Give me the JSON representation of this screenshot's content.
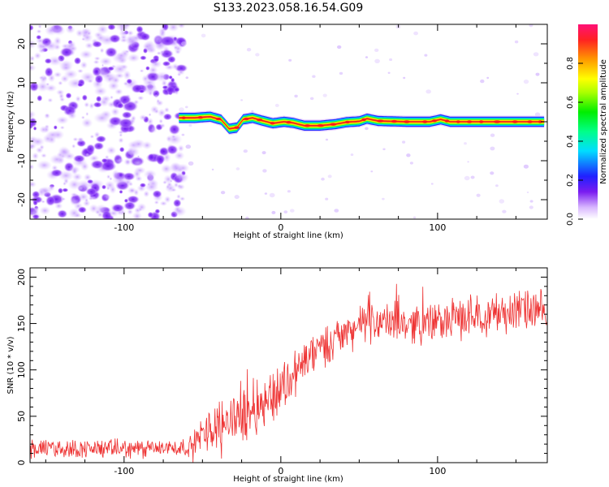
{
  "title": "S133.2023.058.16.54.G09",
  "chart_data": [
    {
      "type": "heatmap",
      "xlabel": "Height of straight line (km)",
      "ylabel": "Frequency (Hz)",
      "xlim": [
        -160,
        170
      ],
      "ylim": [
        -25,
        25
      ],
      "x_ticks": [
        "-100",
        "0",
        "100"
      ],
      "y_ticks": [
        "-20",
        "-10",
        "0",
        "10",
        "20"
      ],
      "colorbar": {
        "label": "Normalized spectral amplitude",
        "range": [
          0.0,
          1.0
        ],
        "ticks": [
          "0.0",
          "0.2",
          "0.4",
          "0.6",
          "0.8"
        ]
      },
      "noise_region_x": [
        -160,
        -65
      ],
      "ridge": {
        "x_range": [
          -65,
          168
        ],
        "frequency_trace": [
          {
            "x": -65,
            "f": 1.0
          },
          {
            "x": -55,
            "f": 1.0
          },
          {
            "x": -45,
            "f": 1.3
          },
          {
            "x": -38,
            "f": 0.5
          },
          {
            "x": -33,
            "f": -1.8
          },
          {
            "x": -28,
            "f": -1.5
          },
          {
            "x": -24,
            "f": 0.6
          },
          {
            "x": -18,
            "f": 1.0
          },
          {
            "x": -12,
            "f": 0.3
          },
          {
            "x": -5,
            "f": -0.4
          },
          {
            "x": 2,
            "f": 0.0
          },
          {
            "x": 8,
            "f": -0.3
          },
          {
            "x": 15,
            "f": -1.0
          },
          {
            "x": 25,
            "f": -1.0
          },
          {
            "x": 35,
            "f": -0.6
          },
          {
            "x": 42,
            "f": -0.1
          },
          {
            "x": 50,
            "f": 0.1
          },
          {
            "x": 55,
            "f": 0.8
          },
          {
            "x": 62,
            "f": 0.2
          },
          {
            "x": 80,
            "f": 0.0
          },
          {
            "x": 95,
            "f": 0.0
          },
          {
            "x": 102,
            "f": 0.6
          },
          {
            "x": 108,
            "f": 0.0
          },
          {
            "x": 168,
            "f": 0.0
          }
        ]
      }
    },
    {
      "type": "line",
      "xlabel": "Height of straight line (km)",
      "ylabel": "SNR (10 * v/v)",
      "xlim": [
        -160,
        170
      ],
      "ylim": [
        0,
        210
      ],
      "x_ticks": [
        "-100",
        "0",
        "100"
      ],
      "y_ticks": [
        "0",
        "50",
        "100",
        "150",
        "200"
      ],
      "series_color": "#ee3333",
      "trend": [
        {
          "x": -160,
          "y": 15
        },
        {
          "x": -120,
          "y": 15
        },
        {
          "x": -80,
          "y": 15
        },
        {
          "x": -58,
          "y": 17
        },
        {
          "x": -50,
          "y": 30
        },
        {
          "x": -40,
          "y": 42
        },
        {
          "x": -30,
          "y": 48
        },
        {
          "x": -20,
          "y": 58
        },
        {
          "x": -10,
          "y": 66
        },
        {
          "x": 0,
          "y": 80
        },
        {
          "x": 10,
          "y": 100
        },
        {
          "x": 20,
          "y": 115
        },
        {
          "x": 30,
          "y": 130
        },
        {
          "x": 40,
          "y": 138
        },
        {
          "x": 50,
          "y": 148
        },
        {
          "x": 60,
          "y": 152
        },
        {
          "x": 80,
          "y": 150
        },
        {
          "x": 100,
          "y": 152
        },
        {
          "x": 120,
          "y": 158
        },
        {
          "x": 140,
          "y": 162
        },
        {
          "x": 155,
          "y": 165
        },
        {
          "x": 170,
          "y": 160
        }
      ],
      "noise_spread": [
        {
          "x": -160,
          "d": 12
        },
        {
          "x": -58,
          "d": 12
        },
        {
          "x": -50,
          "d": 25
        },
        {
          "x": -20,
          "d": 40
        },
        {
          "x": 0,
          "d": 35
        },
        {
          "x": 40,
          "d": 25
        },
        {
          "x": 170,
          "d": 28
        }
      ]
    }
  ]
}
